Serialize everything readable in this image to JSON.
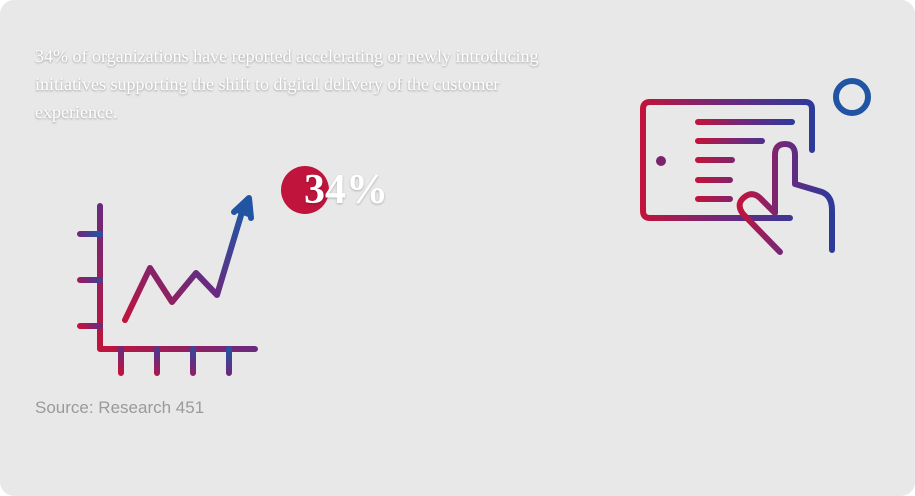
{
  "statement": "34% of organizations have reported accelerating or newly introducing initiatives supporting the shift to digital delivery of the customer experience.",
  "stat": "34%",
  "source": "Source: Research 451"
}
